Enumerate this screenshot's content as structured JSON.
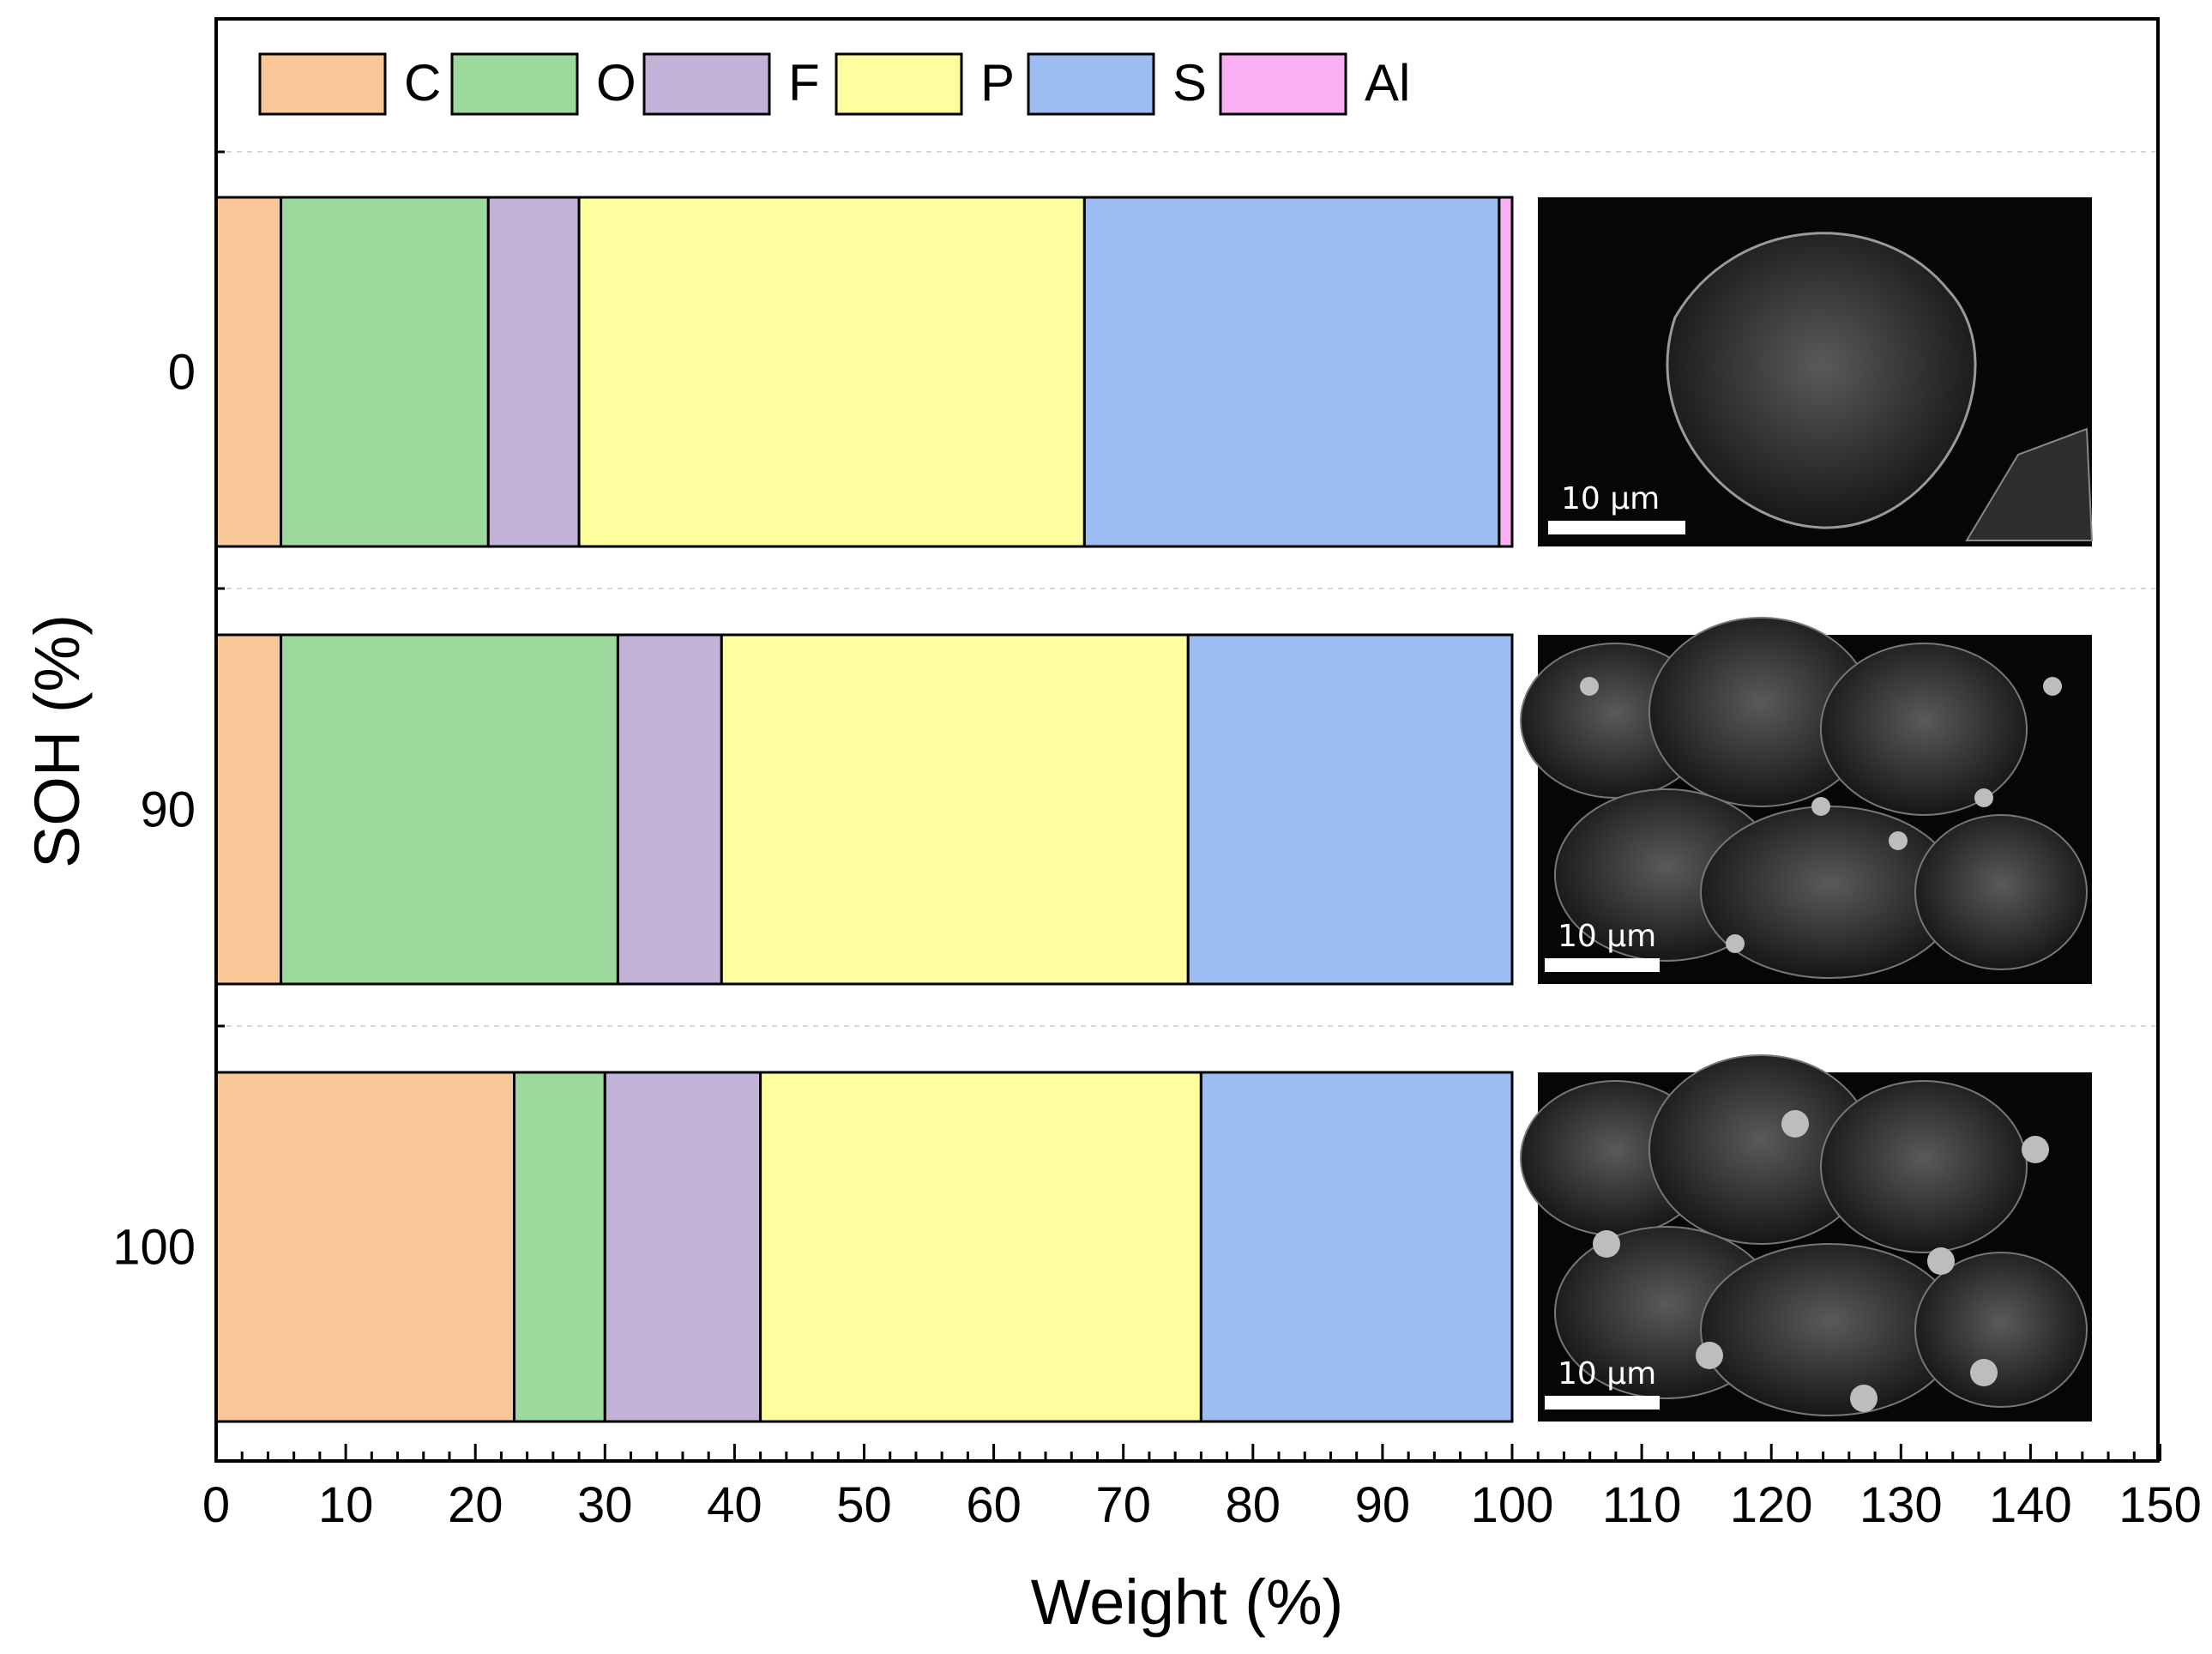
{
  "chart_data": {
    "type": "bar",
    "orientation": "horizontal",
    "stacked": true,
    "categories": [
      "0",
      "90",
      "100"
    ],
    "series": [
      {
        "name": "C",
        "color": "#F9C697",
        "values": [
          5,
          5,
          23
        ]
      },
      {
        "name": "O",
        "color": "#9DD89D",
        "values": [
          16,
          26,
          7
        ]
      },
      {
        "name": "F",
        "color": "#C2B2D7",
        "values": [
          7,
          8,
          12
        ]
      },
      {
        "name": "P",
        "color": "#FEFE9E",
        "values": [
          39,
          36,
          34
        ]
      },
      {
        "name": "S",
        "color": "#9DBCF2",
        "values": [
          32,
          25,
          24
        ]
      },
      {
        "name": "Al",
        "color": "#FBB0F5",
        "values": [
          1,
          0,
          0
        ]
      }
    ],
    "xlabel": "Weight (%)",
    "ylabel": "SOH (%)",
    "xlim": [
      0,
      150
    ],
    "xticks": [
      "0",
      "10",
      "20",
      "30",
      "40",
      "50",
      "60",
      "70",
      "80",
      "90",
      "100",
      "110",
      "120",
      "130",
      "140",
      "150"
    ],
    "grid": "dashed horizontal separators between categories",
    "legend": "top, horizontal",
    "insets": [
      {
        "category": "0",
        "description": "SEM micrograph",
        "scale_bar": "10 μm"
      },
      {
        "category": "90",
        "description": "SEM micrograph",
        "scale_bar": "10 μm"
      },
      {
        "category": "100",
        "description": "SEM micrograph",
        "scale_bar": "10 μm"
      }
    ]
  }
}
